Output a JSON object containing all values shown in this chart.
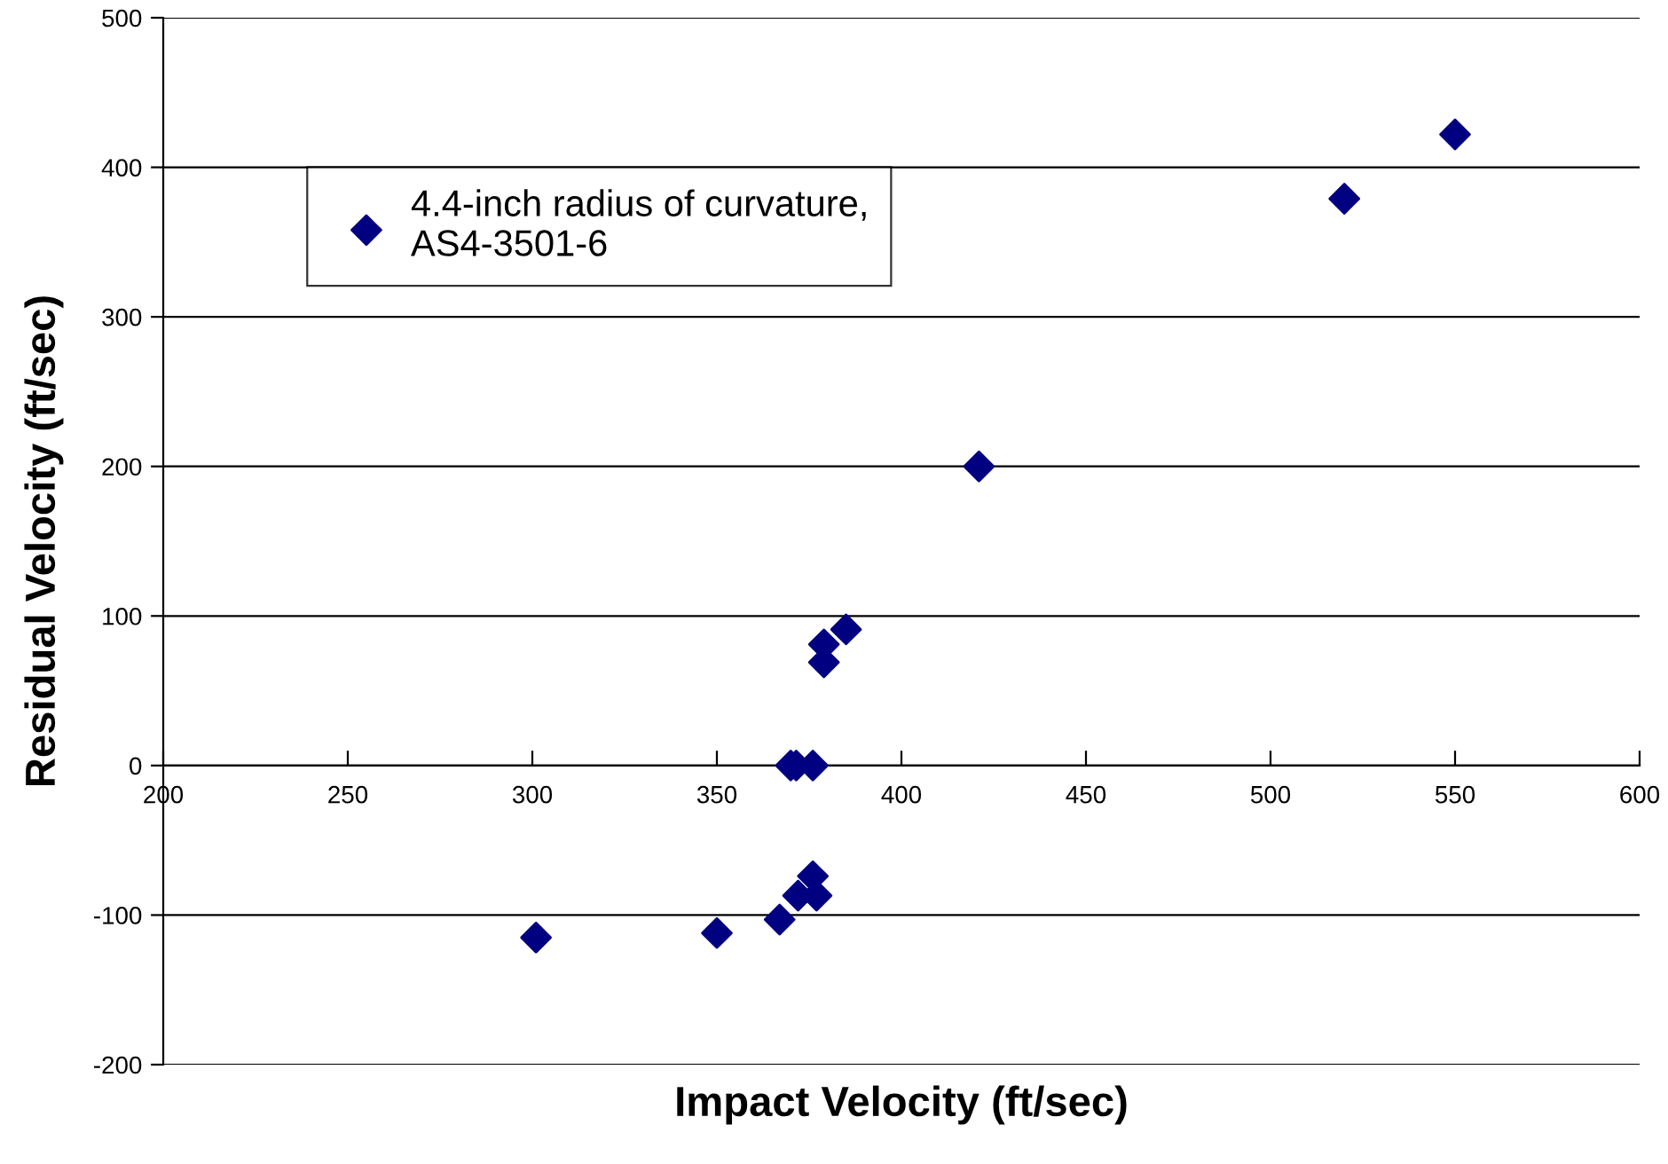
{
  "chart_data": {
    "type": "scatter",
    "xlabel": "Impact Velocity (ft/sec)",
    "ylabel": "Residual Velocity (ft/sec)",
    "series": [
      {
        "name": "4.4-inch radius of curvature,\nAS4-3501-6",
        "color": "#000080",
        "x": [
          301,
          350,
          367,
          372,
          376,
          377,
          370,
          371.5,
          376,
          379,
          379,
          385,
          421,
          520,
          550
        ],
        "values": [
          -115,
          -112,
          -103,
          -87,
          -74,
          -87,
          0,
          0,
          0,
          81,
          69,
          91,
          200,
          379,
          422
        ]
      }
    ],
    "marker": "diamond",
    "xlim": [
      200,
      600
    ],
    "xticks": [
      200,
      250,
      300,
      350,
      400,
      450,
      500,
      550,
      600
    ],
    "ylim": [
      -200,
      500
    ],
    "yticks": [
      -200,
      -100,
      0,
      100,
      200,
      300,
      400,
      500
    ],
    "grid": "y",
    "legend": "top left"
  }
}
